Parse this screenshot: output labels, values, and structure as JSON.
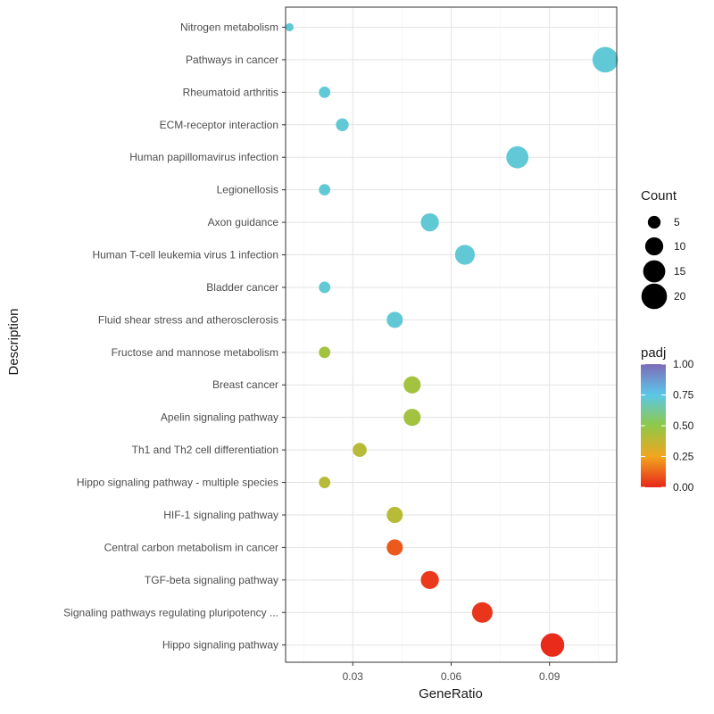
{
  "chart_data": {
    "type": "scatter",
    "title": "",
    "xlabel": "GeneRatio",
    "ylabel": "Description",
    "xlim": [
      0.0095,
      0.1105
    ],
    "x_ticks": [
      0.03,
      0.06,
      0.09
    ],
    "x_tick_labels": [
      "0.03",
      "0.06",
      "0.09"
    ],
    "grid": true,
    "categories": [
      "Nitrogen metabolism",
      "Pathways in cancer",
      "Rheumatoid arthritis",
      "ECM-receptor interaction",
      "Human papillomavirus infection",
      "Legionellosis",
      "Axon guidance",
      "Human T-cell leukemia virus 1 infection",
      "Bladder cancer",
      "Fluid shear stress and atherosclerosis",
      "Fructose and mannose metabolism",
      "Breast cancer",
      "Apelin signaling pathway",
      "Th1 and Th2 cell differentiation",
      "Hippo signaling pathway - multiple species",
      "HIF-1 signaling pathway",
      "Central carbon metabolism in cancer",
      "TGF-beta signaling pathway",
      "Signaling pathways regulating pluripotency ...",
      "Hippo signaling pathway"
    ],
    "points": [
      {
        "x": 0.0107,
        "count": 2,
        "padj": 0.72
      },
      {
        "x": 0.107,
        "count": 20,
        "padj": 0.72
      },
      {
        "x": 0.0214,
        "count": 4,
        "padj": 0.72
      },
      {
        "x": 0.0268,
        "count": 5,
        "padj": 0.72
      },
      {
        "x": 0.0802,
        "count": 15,
        "padj": 0.72
      },
      {
        "x": 0.0214,
        "count": 4,
        "padj": 0.72
      },
      {
        "x": 0.0535,
        "count": 10,
        "padj": 0.72
      },
      {
        "x": 0.0642,
        "count": 12,
        "padj": 0.72
      },
      {
        "x": 0.0214,
        "count": 4,
        "padj": 0.72
      },
      {
        "x": 0.0428,
        "count": 8,
        "padj": 0.72
      },
      {
        "x": 0.0214,
        "count": 4,
        "padj": 0.45
      },
      {
        "x": 0.0481,
        "count": 9,
        "padj": 0.45
      },
      {
        "x": 0.0481,
        "count": 9,
        "padj": 0.45
      },
      {
        "x": 0.0321,
        "count": 6,
        "padj": 0.4
      },
      {
        "x": 0.0214,
        "count": 4,
        "padj": 0.4
      },
      {
        "x": 0.0428,
        "count": 8,
        "padj": 0.4
      },
      {
        "x": 0.0428,
        "count": 8,
        "padj": 0.1
      },
      {
        "x": 0.0535,
        "count": 10,
        "padj": 0.04
      },
      {
        "x": 0.0695,
        "count": 13,
        "padj": 0.03
      },
      {
        "x": 0.0909,
        "count": 17,
        "padj": 0.01
      }
    ],
    "legend_count": {
      "title": "Count",
      "values": [
        5,
        10,
        15,
        20
      ],
      "labels": [
        "5",
        "10",
        "15",
        "20"
      ]
    },
    "legend_padj": {
      "title": "padj",
      "range": [
        0,
        1
      ],
      "ticks": [
        0,
        0.25,
        0.5,
        0.75,
        1
      ],
      "tick_labels": [
        "0.00",
        "0.25",
        "0.50",
        "0.75",
        "1.00"
      ],
      "colors": {
        "low": "#e8261a",
        "mid_low": "#f2a51f",
        "mid": "#8fc947",
        "mid_high": "#5bc8e8",
        "high": "#7e6bb8"
      }
    },
    "legend_placement": "right"
  }
}
